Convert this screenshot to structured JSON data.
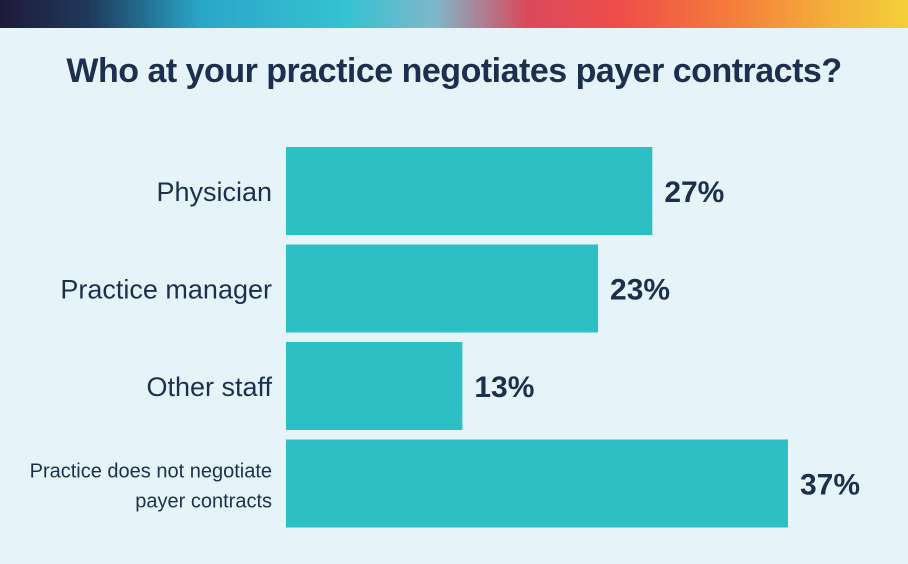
{
  "chart_data": {
    "type": "bar",
    "orientation": "horizontal",
    "title": "Who at your practice negotiates payer contracts?",
    "categories": [
      "Physician",
      "Practice manager",
      "Other staff",
      "Practice does not negotiate payer contracts"
    ],
    "category_lines": [
      [
        "Physician"
      ],
      [
        "Practice manager"
      ],
      [
        "Other staff"
      ],
      [
        "Practice does not negotiate",
        "payer contracts"
      ]
    ],
    "values": [
      27,
      23,
      13,
      37
    ],
    "value_labels": [
      "27%",
      "23%",
      "13%",
      "37%"
    ],
    "unit": "%",
    "xlim": [
      0,
      37
    ],
    "grid": false,
    "legend": "none",
    "bar_color": "#2cbfc4",
    "text_color": "#1d2f4f",
    "background_color": "#e6f4fa"
  }
}
